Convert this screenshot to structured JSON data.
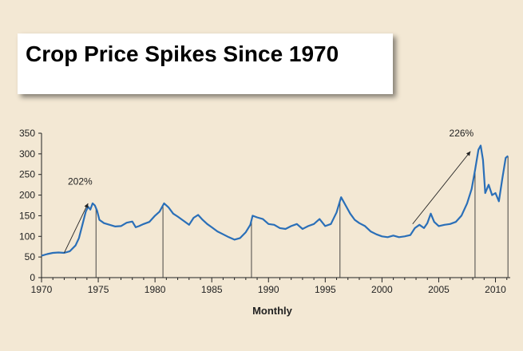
{
  "chart_data": {
    "type": "line",
    "title": "Crop Price Spikes Since 1970",
    "xlabel": "Monthly",
    "ylabel": "",
    "xlim": [
      1970,
      2011.3
    ],
    "ylim": [
      0,
      350
    ],
    "x_ticks": [
      1970,
      1975,
      1980,
      1985,
      1990,
      1995,
      2000,
      2005,
      2010
    ],
    "y_ticks": [
      0,
      50,
      100,
      150,
      200,
      250,
      300,
      350
    ],
    "grid": false,
    "line_color": "#2a6fb8",
    "series": [
      {
        "name": "",
        "x": [
          1970.0,
          1970.5,
          1971.0,
          1971.5,
          1972.0,
          1972.5,
          1973.0,
          1973.3,
          1973.6,
          1973.9,
          1974.1,
          1974.3,
          1974.5,
          1974.7,
          1974.9,
          1975.1,
          1975.5,
          1976.0,
          1976.5,
          1977.0,
          1977.5,
          1978.0,
          1978.3,
          1978.6,
          1979.0,
          1979.5,
          1980.0,
          1980.4,
          1980.8,
          1981.2,
          1981.6,
          1982.0,
          1982.5,
          1983.0,
          1983.4,
          1983.8,
          1984.2,
          1984.6,
          1985.0,
          1985.5,
          1986.0,
          1986.5,
          1987.0,
          1987.5,
          1988.0,
          1988.4,
          1988.6,
          1989.0,
          1989.5,
          1990.0,
          1990.5,
          1991.0,
          1991.5,
          1992.0,
          1992.5,
          1993.0,
          1993.5,
          1994.0,
          1994.5,
          1995.0,
          1995.5,
          1996.0,
          1996.4,
          1996.8,
          1997.2,
          1997.6,
          1998.0,
          1998.5,
          1999.0,
          1999.5,
          2000.0,
          2000.5,
          2001.0,
          2001.5,
          2002.0,
          2002.5,
          2002.9,
          2003.3,
          2003.7,
          2004.0,
          2004.3,
          2004.6,
          2005.0,
          2005.5,
          2006.0,
          2006.5,
          2007.0,
          2007.5,
          2007.9,
          2008.2,
          2008.5,
          2008.7,
          2008.9,
          2009.1,
          2009.4,
          2009.7,
          2010.0,
          2010.3,
          2010.6,
          2010.9,
          2011.1
        ],
        "values": [
          53,
          57,
          60,
          61,
          60,
          64,
          78,
          96,
          128,
          160,
          172,
          165,
          180,
          175,
          162,
          140,
          132,
          128,
          124,
          125,
          133,
          136,
          122,
          125,
          130,
          135,
          150,
          160,
          180,
          170,
          155,
          148,
          138,
          128,
          145,
          152,
          140,
          130,
          122,
          112,
          105,
          98,
          92,
          96,
          110,
          128,
          150,
          146,
          142,
          130,
          128,
          120,
          118,
          125,
          130,
          118,
          125,
          130,
          142,
          125,
          130,
          158,
          195,
          175,
          155,
          140,
          132,
          125,
          112,
          105,
          100,
          98,
          102,
          98,
          100,
          103,
          120,
          128,
          120,
          132,
          155,
          135,
          125,
          128,
          130,
          135,
          150,
          180,
          215,
          260,
          310,
          320,
          285,
          205,
          225,
          200,
          205,
          185,
          240,
          290,
          295
        ]
      }
    ],
    "markers_x": [
      1974.8,
      1980.7,
      1988.5,
      1996.3,
      2008.2,
      2011.1
    ],
    "annotations": [
      {
        "text": "202%",
        "x_from": 1972.0,
        "y_from": 60,
        "x_to": 1974.1,
        "y_to": 180,
        "label_x": 1973.4,
        "label_y": 225
      },
      {
        "text": "226%",
        "x_from": 2002.7,
        "y_from": 130,
        "x_to": 2007.8,
        "y_to": 306,
        "label_x": 2007.0,
        "label_y": 342
      }
    ]
  }
}
